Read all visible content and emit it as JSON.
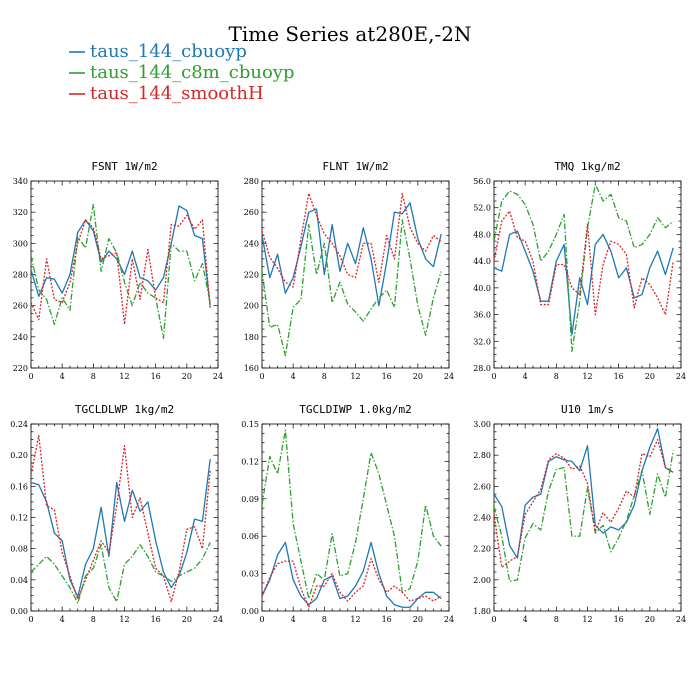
{
  "figure": {
    "title": "Time Series at280E,-2N"
  },
  "legend": [
    {
      "name": "taus_144_cbuoyp",
      "color": "#1f77b4",
      "dash": "solid"
    },
    {
      "name": "taus_144_c8m_cbuoyp",
      "color": "#2ca02c",
      "dash": "dashdot"
    },
    {
      "name": "taus_144_smoothH",
      "color": "#d62728",
      "dash": "dotted"
    }
  ],
  "chart_data": [
    {
      "type": "line",
      "title": "FSNT   1W/m2",
      "xlim": [
        0,
        24
      ],
      "ylim": [
        220,
        340
      ],
      "xticks": [
        0,
        4,
        8,
        12,
        16,
        20,
        24
      ],
      "yticks": [
        220,
        240,
        260,
        280,
        300,
        320,
        340
      ],
      "ytick_labels": [
        "220",
        "240",
        "260",
        "280",
        "300",
        "320",
        "340"
      ],
      "x": [
        0,
        1,
        2,
        3,
        4,
        5,
        6,
        7,
        8,
        9,
        10,
        11,
        12,
        13,
        14,
        15,
        16,
        17,
        18,
        19,
        20,
        21,
        22,
        23
      ],
      "series": [
        {
          "name": "taus_144_cbuoyp",
          "values": [
            283,
            266,
            278,
            277,
            268,
            280,
            307,
            315,
            308,
            288,
            295,
            290,
            280,
            295,
            278,
            276,
            270,
            278,
            300,
            324,
            321,
            305,
            303,
            260
          ]
        },
        {
          "name": "taus_144_c8m_cbuoyp",
          "values": [
            292,
            270,
            264,
            248,
            265,
            257,
            304,
            297,
            325,
            282,
            303,
            294,
            275,
            260,
            275,
            268,
            265,
            239,
            300,
            295,
            295,
            276,
            287,
            262
          ]
        },
        {
          "name": "taus_144_smoothH",
          "values": [
            262,
            251,
            290,
            264,
            262,
            275,
            300,
            315,
            310,
            290,
            292,
            294,
            248,
            290,
            264,
            296,
            265,
            262,
            312,
            311,
            318,
            309,
            315,
            258
          ]
        }
      ]
    },
    {
      "type": "line",
      "title": "FLNT   1W/m2",
      "xlim": [
        0,
        24
      ],
      "ylim": [
        160,
        280
      ],
      "xticks": [
        0,
        4,
        8,
        12,
        16,
        20,
        24
      ],
      "yticks": [
        160,
        180,
        200,
        220,
        240,
        260,
        280
      ],
      "ytick_labels": [
        "160",
        "180",
        "200",
        "220",
        "240",
        "260",
        "280"
      ],
      "x": [
        0,
        1,
        2,
        3,
        4,
        5,
        6,
        7,
        8,
        9,
        10,
        11,
        12,
        13,
        14,
        15,
        16,
        17,
        18,
        19,
        20,
        21,
        22,
        23
      ],
      "series": [
        {
          "name": "taus_144_cbuoyp",
          "values": [
            245,
            218,
            233,
            208,
            218,
            238,
            260,
            262,
            220,
            252,
            222,
            240,
            227,
            250,
            230,
            200,
            228,
            260,
            259,
            266,
            243,
            230,
            225,
            246
          ]
        },
        {
          "name": "taus_144_c8m_cbuoyp",
          "values": [
            222,
            186,
            188,
            168,
            199,
            204,
            252,
            220,
            240,
            202,
            215,
            201,
            196,
            190,
            198,
            205,
            210,
            199,
            255,
            230,
            200,
            181,
            205,
            222
          ]
        },
        {
          "name": "taus_144_smoothH",
          "values": [
            248,
            231,
            224,
            215,
            212,
            243,
            272,
            258,
            246,
            240,
            232,
            220,
            218,
            240,
            240,
            215,
            245,
            230,
            272,
            250,
            240,
            235,
            245,
            241
          ]
        }
      ]
    },
    {
      "type": "line",
      "title": "TMQ   1kg/m2",
      "xlim": [
        0,
        24
      ],
      "ylim": [
        28,
        56
      ],
      "xticks": [
        0,
        4,
        8,
        12,
        16,
        20,
        24
      ],
      "yticks": [
        28,
        32,
        36,
        40,
        44,
        48,
        52,
        56
      ],
      "ytick_labels": [
        "28.0",
        "32.0",
        "36.0",
        "40.0",
        "44.0",
        "48.0",
        "52.0",
        "56.0"
      ],
      "x": [
        0,
        1,
        2,
        3,
        4,
        5,
        6,
        7,
        8,
        9,
        10,
        11,
        12,
        13,
        14,
        15,
        16,
        17,
        18,
        19,
        20,
        21,
        22,
        23
      ],
      "series": [
        {
          "name": "taus_144_cbuoyp",
          "values": [
            43,
            42.5,
            48,
            48.5,
            45.5,
            42.5,
            38,
            38,
            44,
            46.5,
            33,
            41.5,
            37.5,
            46.5,
            48,
            45.5,
            41.5,
            43,
            38.5,
            39,
            43,
            45.5,
            42,
            46
          ]
        },
        {
          "name": "taus_144_c8m_cbuoyp",
          "values": [
            47,
            53,
            54.5,
            54,
            52.5,
            49.5,
            44,
            45.5,
            48,
            51,
            30.5,
            38,
            49,
            55.5,
            53,
            54,
            50.5,
            50,
            46,
            46.5,
            48,
            50.5,
            49,
            50
          ]
        },
        {
          "name": "taus_144_smoothH",
          "values": [
            44,
            50,
            51.5,
            47.5,
            47,
            44,
            37.5,
            37.5,
            43.5,
            43.5,
            40,
            39,
            49.5,
            36,
            43.5,
            47,
            46.5,
            45,
            37,
            41.5,
            40.5,
            38.5,
            36,
            44
          ]
        }
      ]
    },
    {
      "type": "line",
      "title": "TGCLDLWP   1kg/m2",
      "xlim": [
        0,
        24
      ],
      "ylim": [
        0,
        0.24
      ],
      "xticks": [
        0,
        4,
        8,
        12,
        16,
        20,
        24
      ],
      "yticks": [
        0,
        0.04,
        0.08,
        0.12,
        0.16,
        0.2,
        0.24
      ],
      "ytick_labels": [
        "0.00",
        "0.04",
        "0.08",
        "0.12",
        "0.16",
        "0.20",
        "0.24"
      ],
      "x": [
        0,
        1,
        2,
        3,
        4,
        5,
        6,
        7,
        8,
        9,
        10,
        11,
        12,
        13,
        14,
        15,
        16,
        17,
        18,
        19,
        20,
        21,
        22,
        23
      ],
      "series": [
        {
          "name": "taus_144_cbuoyp",
          "values": [
            0.165,
            0.162,
            0.14,
            0.1,
            0.09,
            0.04,
            0.018,
            0.06,
            0.08,
            0.133,
            0.07,
            0.165,
            0.115,
            0.155,
            0.128,
            0.14,
            0.09,
            0.05,
            0.03,
            0.045,
            0.075,
            0.118,
            0.115,
            0.195
          ]
        },
        {
          "name": "taus_144_c8m_cbuoyp",
          "values": [
            0.05,
            0.06,
            0.07,
            0.06,
            0.045,
            0.03,
            0.01,
            0.045,
            0.055,
            0.085,
            0.03,
            0.012,
            0.06,
            0.07,
            0.085,
            0.07,
            0.05,
            0.045,
            0.038,
            0.045,
            0.05,
            0.055,
            0.067,
            0.088
          ]
        },
        {
          "name": "taus_144_smoothH",
          "values": [
            0.175,
            0.225,
            0.135,
            0.13,
            0.075,
            0.045,
            0.015,
            0.04,
            0.065,
            0.09,
            0.075,
            0.135,
            0.212,
            0.12,
            0.145,
            0.1,
            0.055,
            0.045,
            0.012,
            0.05,
            0.105,
            0.108,
            0.08,
            0.18
          ]
        }
      ]
    },
    {
      "type": "line",
      "title": "TGCLDIWP   1.0kg/m2",
      "xlim": [
        0,
        24
      ],
      "ylim": [
        0,
        0.15
      ],
      "xticks": [
        0,
        4,
        8,
        12,
        16,
        20,
        24
      ],
      "yticks": [
        0,
        0.03,
        0.06,
        0.09,
        0.12,
        0.15
      ],
      "ytick_labels": [
        "0.00",
        "0.03",
        "0.06",
        "0.09",
        "0.12",
        "0.15"
      ],
      "x": [
        0,
        1,
        2,
        3,
        4,
        5,
        6,
        7,
        8,
        9,
        10,
        11,
        12,
        13,
        14,
        15,
        16,
        17,
        18,
        19,
        20,
        21,
        22,
        23
      ],
      "series": [
        {
          "name": "taus_144_cbuoyp",
          "values": [
            0.012,
            0.025,
            0.045,
            0.055,
            0.025,
            0.012,
            0.005,
            0.01,
            0.025,
            0.028,
            0.01,
            0.012,
            0.02,
            0.032,
            0.055,
            0.03,
            0.012,
            0.005,
            0.003,
            0.003,
            0.01,
            0.015,
            0.015,
            0.01
          ]
        },
        {
          "name": "taus_144_c8m_cbuoyp",
          "values": [
            0.085,
            0.124,
            0.11,
            0.145,
            0.07,
            0.04,
            0.01,
            0.03,
            0.025,
            0.062,
            0.028,
            0.03,
            0.055,
            0.09,
            0.127,
            0.11,
            0.085,
            0.06,
            0.015,
            0.018,
            0.04,
            0.085,
            0.06,
            0.052
          ]
        },
        {
          "name": "taus_144_smoothH",
          "values": [
            0.012,
            0.027,
            0.038,
            0.04,
            0.04,
            0.018,
            0.003,
            0.02,
            0.02,
            0.03,
            0.015,
            0.008,
            0.015,
            0.02,
            0.042,
            0.025,
            0.015,
            0.02,
            0.015,
            0.008,
            0.01,
            0.012,
            0.008,
            0.012
          ]
        }
      ]
    },
    {
      "type": "line",
      "title": "U10   1m/s",
      "xlim": [
        0,
        24
      ],
      "ylim": [
        1.8,
        3.0
      ],
      "xticks": [
        0,
        4,
        8,
        12,
        16,
        20,
        24
      ],
      "yticks": [
        1.8,
        2.0,
        2.2,
        2.4,
        2.6,
        2.8,
        3.0
      ],
      "ytick_labels": [
        "1.80",
        "2.00",
        "2.20",
        "2.40",
        "2.60",
        "2.80",
        "3.00"
      ],
      "x": [
        0,
        1,
        2,
        3,
        4,
        5,
        6,
        7,
        8,
        9,
        10,
        11,
        12,
        13,
        14,
        15,
        16,
        17,
        18,
        19,
        20,
        21,
        22,
        23
      ],
      "series": [
        {
          "name": "taus_144_cbuoyp",
          "values": [
            2.55,
            2.47,
            2.22,
            2.14,
            2.48,
            2.53,
            2.55,
            2.76,
            2.79,
            2.77,
            2.76,
            2.7,
            2.86,
            2.35,
            2.3,
            2.34,
            2.32,
            2.37,
            2.48,
            2.7,
            2.85,
            2.97,
            2.72,
            2.69
          ]
        },
        {
          "name": "taus_144_c8m_cbuoyp",
          "values": [
            2.47,
            2.28,
            1.99,
            2.0,
            2.27,
            2.36,
            2.32,
            2.57,
            2.71,
            2.72,
            2.28,
            2.28,
            2.59,
            2.3,
            2.35,
            2.18,
            2.27,
            2.38,
            2.54,
            2.7,
            2.42,
            2.68,
            2.53,
            2.83
          ]
        },
        {
          "name": "taus_144_smoothH",
          "values": [
            2.42,
            2.08,
            2.12,
            2.15,
            2.42,
            2.5,
            2.58,
            2.77,
            2.81,
            2.78,
            2.71,
            2.73,
            2.62,
            2.31,
            2.43,
            2.37,
            2.46,
            2.57,
            2.53,
            2.81,
            2.79,
            2.9,
            2.72,
            2.69
          ]
        }
      ]
    }
  ]
}
